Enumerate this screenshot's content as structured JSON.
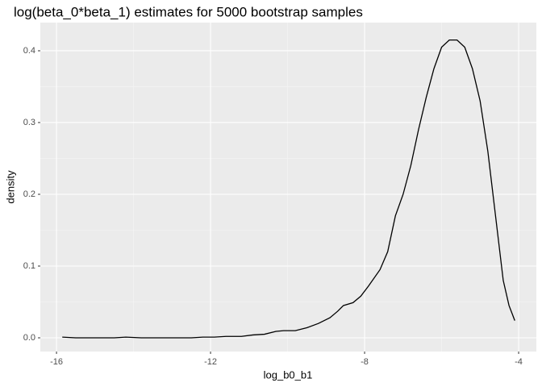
{
  "chart_data": {
    "type": "line",
    "title": "log(beta_0*beta_1) estimates for 5000 bootstrap samples",
    "x_label": "log_b0_b1",
    "y_label": "density",
    "x": [
      -15.85,
      -15.5,
      -15.0,
      -14.5,
      -14.2,
      -13.8,
      -13.0,
      -12.5,
      -12.2,
      -11.9,
      -11.6,
      -11.2,
      -10.9,
      -10.6,
      -10.3,
      -10.1,
      -9.8,
      -9.5,
      -9.2,
      -8.9,
      -8.7,
      -8.55,
      -8.3,
      -8.1,
      -7.9,
      -7.6,
      -7.4,
      -7.2,
      -7.0,
      -6.8,
      -6.6,
      -6.4,
      -6.2,
      -6.0,
      -5.8,
      -5.6,
      -5.4,
      -5.2,
      -5.0,
      -4.8,
      -4.6,
      -4.4,
      -4.25,
      -4.1
    ],
    "values": [
      0.001,
      0.0,
      0.0,
      0.0,
      0.001,
      0.0,
      0.0,
      0.0,
      0.001,
      0.001,
      0.002,
      0.002,
      0.004,
      0.005,
      0.009,
      0.01,
      0.01,
      0.014,
      0.02,
      0.028,
      0.037,
      0.045,
      0.049,
      0.058,
      0.072,
      0.095,
      0.12,
      0.17,
      0.2,
      0.24,
      0.29,
      0.335,
      0.375,
      0.405,
      0.415,
      0.415,
      0.405,
      0.375,
      0.33,
      0.26,
      0.17,
      0.08,
      0.045,
      0.024
    ],
    "color": "#000000",
    "xlim": [
      -16.42,
      -3.54
    ],
    "xticks": [
      -16,
      -12,
      -8,
      -4
    ],
    "ylim": [
      -0.0191,
      0.4393
    ],
    "yticks": [
      {
        "value": 0,
        "label": "0.0"
      },
      0.1,
      0.2,
      0.3,
      0.4
    ],
    "grid": true
  }
}
